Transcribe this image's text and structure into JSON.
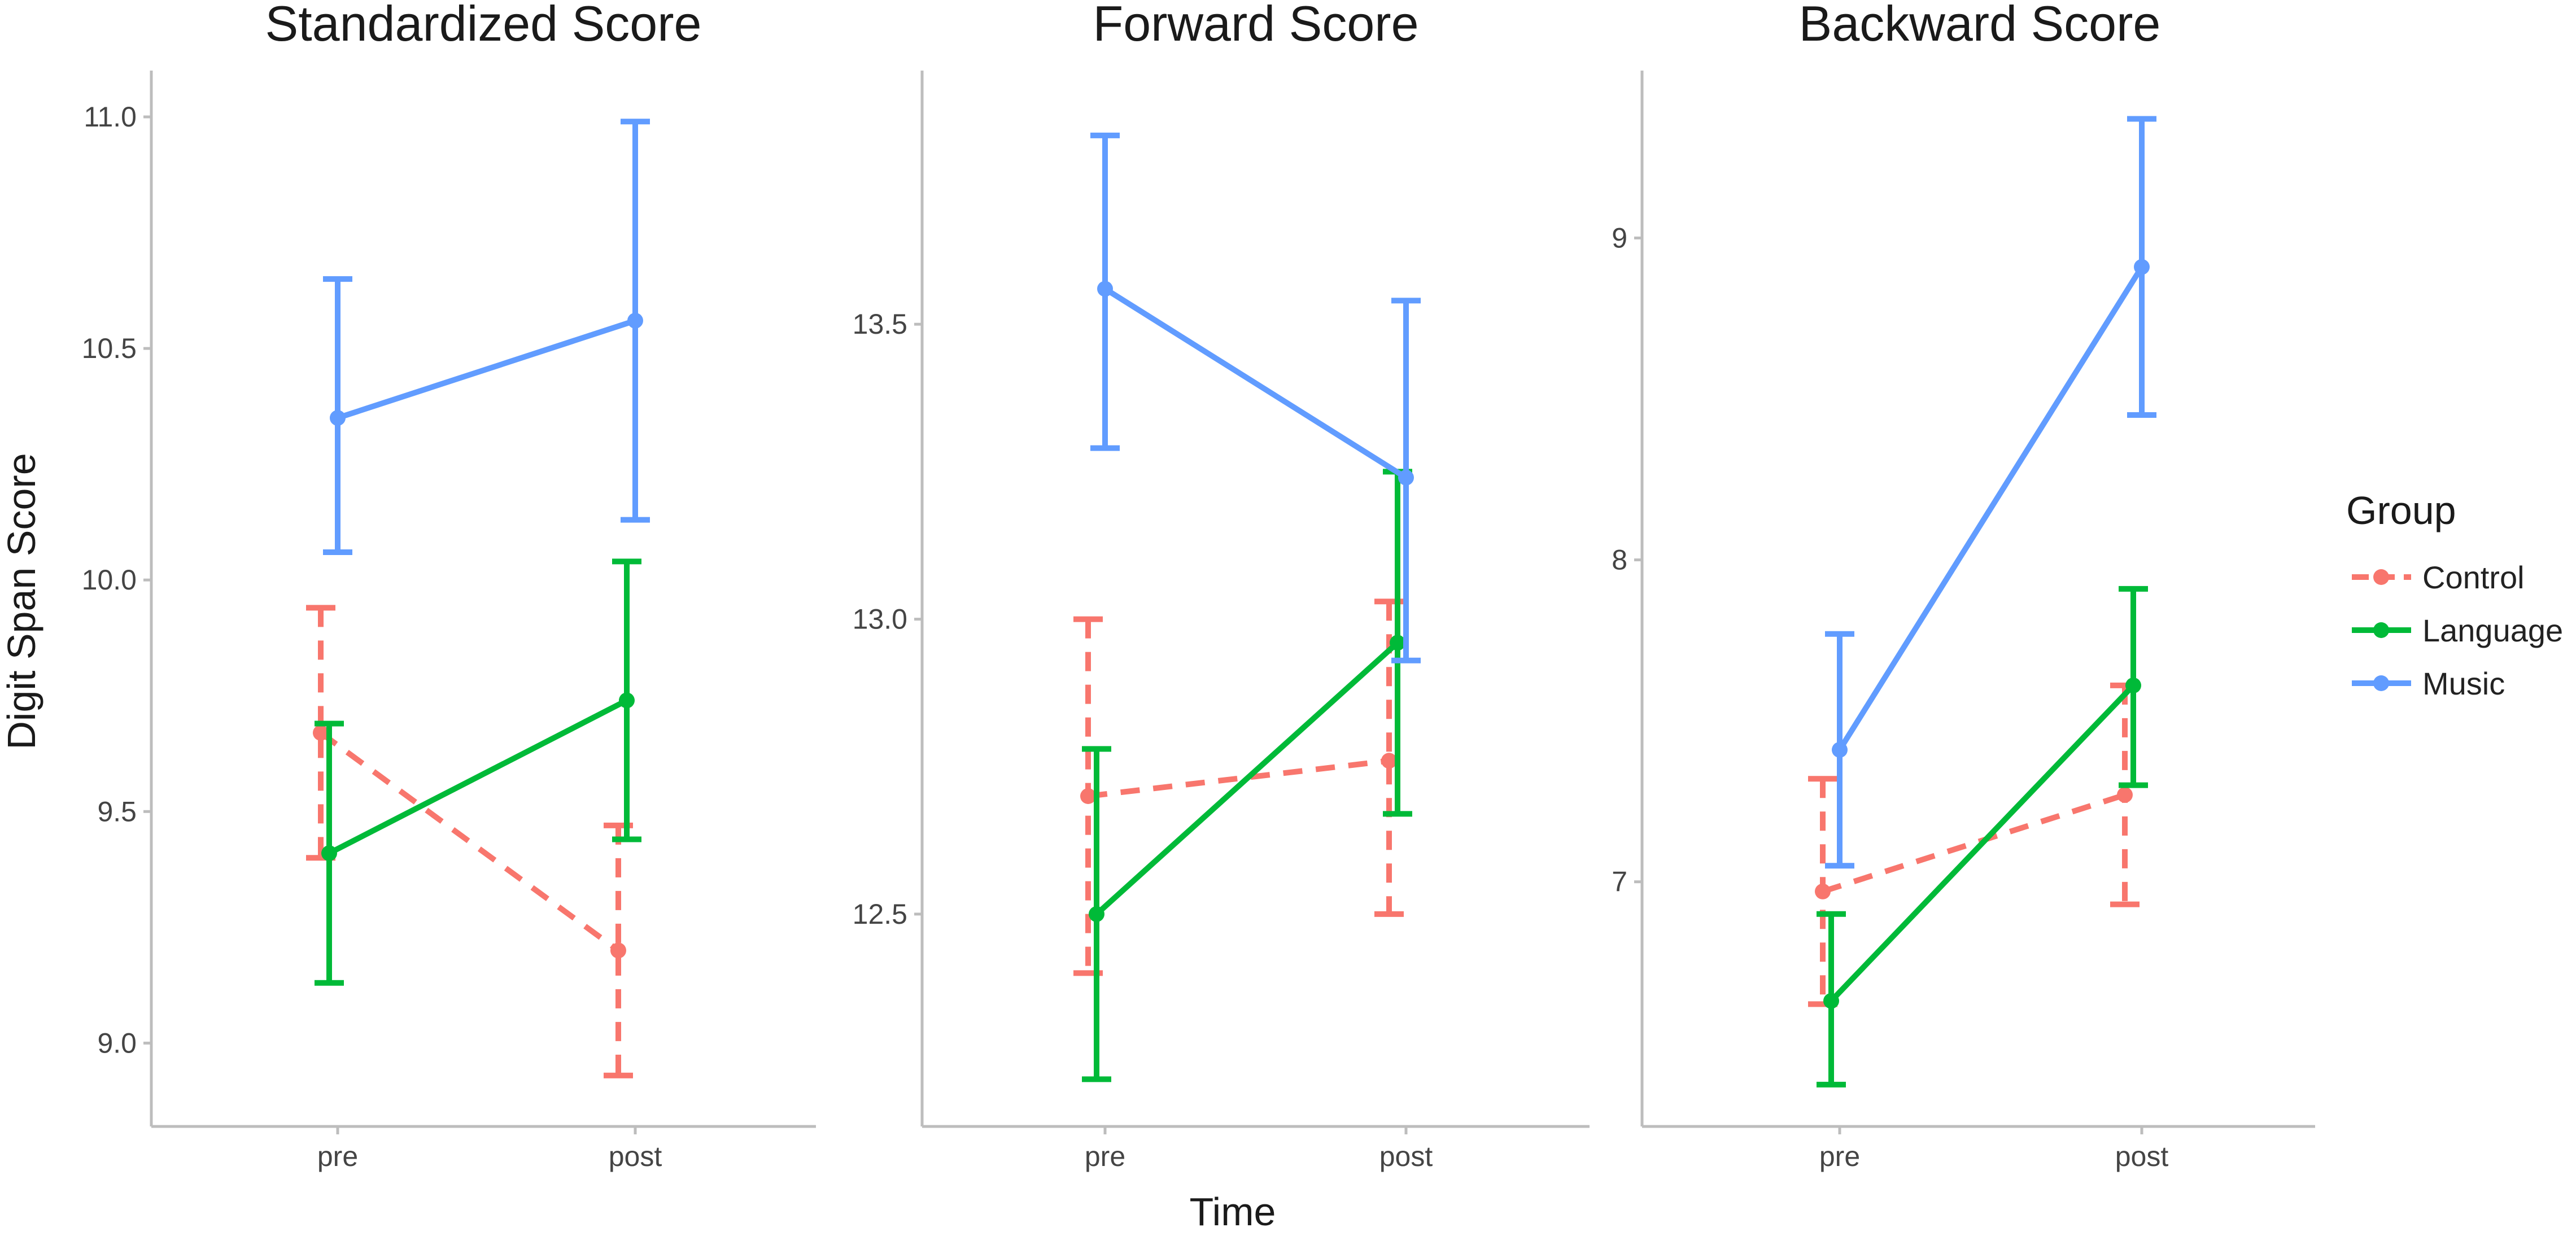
{
  "chart_data": {
    "type": "line",
    "xlabel": "Time",
    "ylabel": "Digit Span Score",
    "x_categories": [
      "pre",
      "post"
    ],
    "legend": {
      "title": "Group",
      "placement": "right",
      "entries": [
        {
          "name": "Control",
          "color": "#F8766D",
          "dashed": true
        },
        {
          "name": "Language",
          "color": "#00BA38",
          "dashed": false
        },
        {
          "name": "Music",
          "color": "#619CFF",
          "dashed": false
        }
      ]
    },
    "grid": false,
    "panels": [
      {
        "title": "Standardized Score",
        "ylim": [
          8.82,
          11.1
        ],
        "yticks": [
          "9.0",
          "9.5",
          "10.0",
          "10.5",
          "11.0"
        ],
        "ytick_values": [
          9.0,
          9.5,
          10.0,
          10.5,
          11.0
        ],
        "series": [
          {
            "name": "Control",
            "mean": [
              9.67,
              9.2
            ],
            "lower": [
              9.4,
              8.93
            ],
            "upper": [
              9.94,
              9.47
            ]
          },
          {
            "name": "Language",
            "mean": [
              9.41,
              9.74
            ],
            "lower": [
              9.13,
              9.44
            ],
            "upper": [
              9.69,
              10.04
            ]
          },
          {
            "name": "Music",
            "mean": [
              10.35,
              10.56
            ],
            "lower": [
              10.06,
              10.13
            ],
            "upper": [
              10.65,
              10.99
            ]
          }
        ]
      },
      {
        "title": "Forward Score",
        "ylim": [
          12.14,
          13.93
        ],
        "yticks": [
          "12.5",
          "13.0",
          "13.5"
        ],
        "ytick_values": [
          12.5,
          13.0,
          13.5
        ],
        "series": [
          {
            "name": "Control",
            "mean": [
              12.7,
              12.76
            ],
            "lower": [
              12.4,
              12.5
            ],
            "upper": [
              13.0,
              13.03
            ]
          },
          {
            "name": "Language",
            "mean": [
              12.5,
              12.96
            ],
            "lower": [
              12.22,
              12.67
            ],
            "upper": [
              12.78,
              13.25
            ]
          },
          {
            "name": "Music",
            "mean": [
              13.56,
              13.24
            ],
            "lower": [
              13.29,
              12.93
            ],
            "upper": [
              13.82,
              13.54
            ]
          }
        ]
      },
      {
        "title": "Backward Score",
        "ylim": [
          6.24,
          9.52
        ],
        "yticks": [
          "7",
          "8",
          "9"
        ],
        "ytick_values": [
          7,
          8,
          9
        ],
        "series": [
          {
            "name": "Control",
            "mean": [
              6.97,
              7.27
            ],
            "lower": [
              6.62,
              6.93
            ],
            "upper": [
              7.32,
              7.61
            ]
          },
          {
            "name": "Language",
            "mean": [
              6.63,
              7.61
            ],
            "lower": [
              6.37,
              7.3
            ],
            "upper": [
              6.9,
              7.91
            ]
          },
          {
            "name": "Music",
            "mean": [
              7.41,
              8.91
            ],
            "lower": [
              7.05,
              8.45
            ],
            "upper": [
              7.77,
              9.37
            ]
          }
        ]
      }
    ]
  }
}
